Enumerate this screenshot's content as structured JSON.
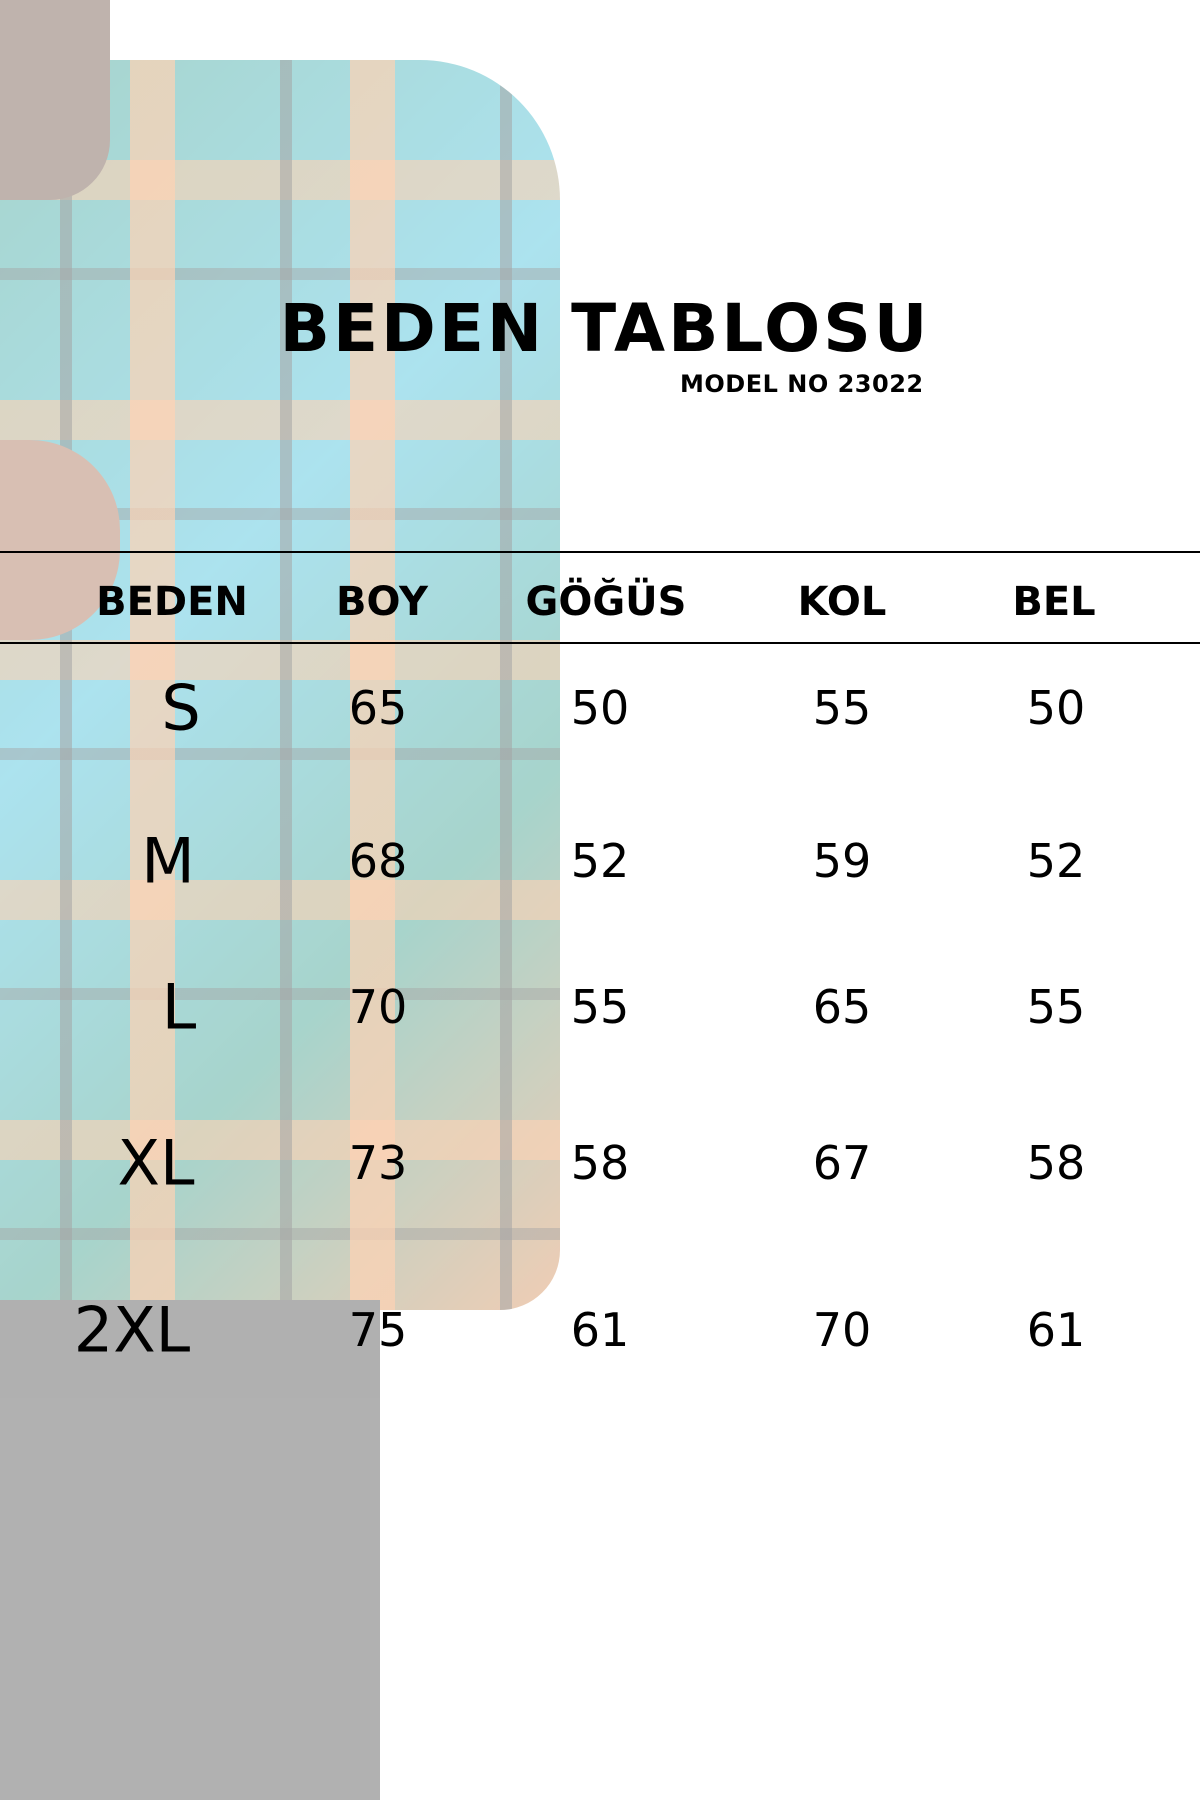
{
  "title": "BEDEN TABLOSU",
  "model": "MODEL NO 23022",
  "columns": [
    "BEDEN",
    "BOY",
    "GÖĞÜS",
    "KOL",
    "BEL"
  ],
  "rows": [
    [
      "S",
      "65",
      "50",
      "55",
      "50"
    ],
    [
      "M",
      "68",
      "52",
      "59",
      "52"
    ],
    [
      "L",
      "70",
      "55",
      "65",
      "55"
    ],
    [
      "XL",
      "73",
      "58",
      "67",
      "58"
    ],
    [
      "2XL",
      "75",
      "61",
      "70",
      "61"
    ]
  ]
}
